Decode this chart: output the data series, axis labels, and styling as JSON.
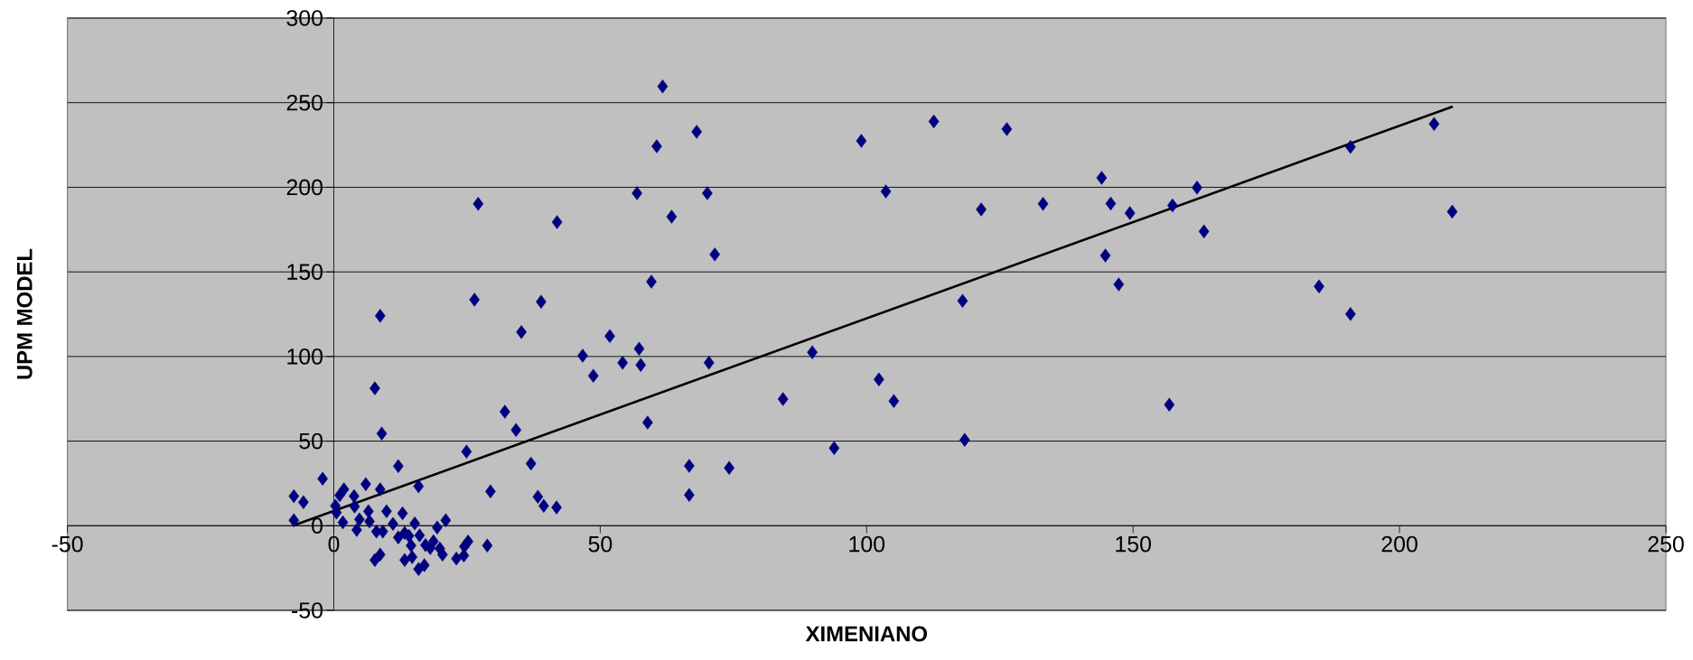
{
  "chart_data": {
    "type": "scatter",
    "xlabel": "XIMENIANO",
    "ylabel": "UPM MODEL",
    "xlim": [
      -50,
      250
    ],
    "ylim": [
      -50,
      300
    ],
    "xticks": [
      -50,
      0,
      50,
      100,
      150,
      200,
      250
    ],
    "yticks": [
      -50,
      0,
      50,
      100,
      150,
      200,
      250,
      300
    ],
    "grid": "y",
    "marker": "diamond",
    "series": [
      {
        "color": "#000080",
        "x": [
          -7.5,
          -5.7,
          -7.5,
          -2.1,
          1.9,
          1.1,
          0.3,
          0.5,
          1.7,
          3.8,
          3.9,
          6.0,
          6.5,
          4.8,
          6.7,
          4.3,
          8.7,
          12.1,
          9.9,
          8.0,
          9.2,
          11.1,
          12.9,
          15.9,
          15.2,
          12.1,
          13.3,
          14.1,
          16.1,
          14.5,
          17.2,
          18.7,
          18.1,
          19.9,
          20.4,
          19.4,
          21.0,
          7.7,
          8.7,
          13.3,
          14.7,
          15.9,
          17.0,
          23.0,
          24.4,
          24.5,
          25.2,
          28.8,
          24.9,
          29.4,
          37.0,
          38.3,
          39.4,
          41.8,
          9.0,
          7.7,
          8.7,
          61.7,
          68.1,
          60.6,
          99.0,
          27.1,
          41.9,
          56.9,
          70.1,
          103.6,
          63.4,
          71.5,
          59.6,
          26.4,
          38.9,
          35.2,
          51.8,
          46.7,
          57.3,
          54.2,
          57.6,
          70.4,
          48.7,
          89.8,
          102.3,
          105.1,
          84.3,
          32.1,
          34.2,
          58.9,
          93.9,
          66.7,
          74.2,
          66.7,
          112.6,
          126.3,
          144.1,
          162.0,
          121.5,
          133.1,
          145.8,
          149.4,
          157.4,
          163.3,
          144.8,
          147.3,
          118.0,
          118.4,
          156.8,
          184.9,
          190.8,
          190.8,
          206.5,
          209.9
        ],
        "values": [
          17.5,
          13.9,
          3.2,
          27.8,
          21.5,
          18.0,
          11.7,
          7.8,
          2.0,
          17.5,
          11.4,
          24.6,
          8.5,
          3.7,
          2.5,
          -2.5,
          21.5,
          35.2,
          8.5,
          -3.4,
          -3.4,
          1.1,
          7.3,
          23.3,
          1.4,
          -6.9,
          -4.3,
          -6.0,
          -5.7,
          -11.7,
          -11.4,
          -9.2,
          -13.2,
          -13.5,
          -17.1,
          -1.1,
          3.2,
          -20.3,
          -17.1,
          -20.3,
          -18.5,
          -25.6,
          -23.3,
          -19.4,
          -17.6,
          -12.3,
          -9.3,
          -11.7,
          43.8,
          20.3,
          36.7,
          17.1,
          11.7,
          10.8,
          54.5,
          81.2,
          124.0,
          259.6,
          232.8,
          224.2,
          227.4,
          190.2,
          179.4,
          196.5,
          196.5,
          197.5,
          182.6,
          160.3,
          144.2,
          133.6,
          132.4,
          114.4,
          112.1,
          100.5,
          104.6,
          96.3,
          95.0,
          96.3,
          88.6,
          102.5,
          86.5,
          73.7,
          74.9,
          67.4,
          56.6,
          61.0,
          45.9,
          35.4,
          34.2,
          18.2,
          238.9,
          234.4,
          205.6,
          199.8,
          186.9,
          190.2,
          190.4,
          184.7,
          189.3,
          173.9,
          159.7,
          142.6,
          132.9,
          50.7,
          71.5,
          141.4,
          223.9,
          125.1,
          237.4,
          185.6
        ]
      },
      {
        "type": "line",
        "color": "#000000",
        "marker": "none",
        "x": [
          -7.7,
          210.0
        ],
        "values": [
          0.0,
          247.7
        ]
      }
    ]
  }
}
